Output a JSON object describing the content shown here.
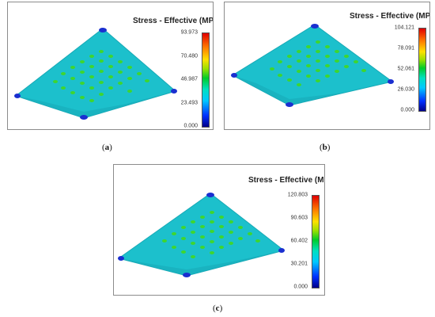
{
  "panels": [
    {
      "id": "a",
      "legend_title": "Stress - Effective (MPa)",
      "ticks": [
        "93.973",
        "70.480",
        "46.987",
        "23.493",
        "0.000"
      ],
      "caption_letter": "a"
    },
    {
      "id": "b",
      "legend_title": "Stress - Effective (MPa)",
      "ticks": [
        "104.121",
        "78.091",
        "52.061",
        "26.030",
        "0.000"
      ],
      "caption_letter": "b"
    },
    {
      "id": "c",
      "legend_title": "Stress - Effective (MPa)",
      "ticks": [
        "120.803",
        "90.603",
        "60.402",
        "30.201",
        "0.000"
      ],
      "caption_letter": "c"
    }
  ],
  "colors": {
    "plate": "#1cc0cc",
    "hotspot": "#1ed23c",
    "hotspot_core": "#58d818",
    "corner": "#1a2fd0"
  }
}
